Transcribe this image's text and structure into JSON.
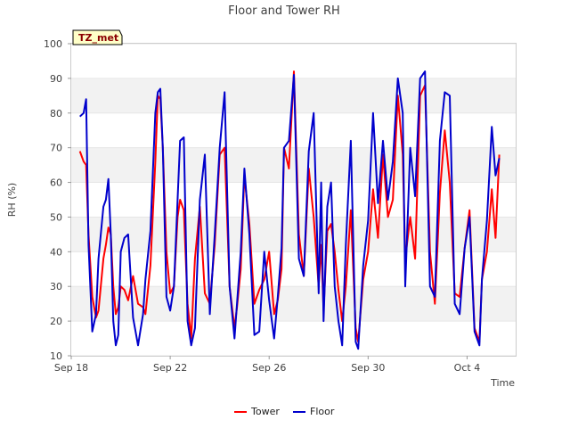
{
  "chart_data": {
    "type": "line",
    "title": "Floor and Tower RH",
    "xlabel": "Time",
    "ylabel": "RH (%)",
    "ylim": [
      10,
      100
    ],
    "yticks": [
      10,
      20,
      30,
      40,
      50,
      60,
      70,
      80,
      90,
      100
    ],
    "xlim_days": [
      0,
      18
    ],
    "xticks": [
      {
        "day": 0,
        "label": "Sep 18"
      },
      {
        "day": 4,
        "label": "Sep 22"
      },
      {
        "day": 8,
        "label": "Sep 26"
      },
      {
        "day": 12,
        "label": "Sep 30"
      },
      {
        "day": 16,
        "label": "Oct 4"
      }
    ],
    "grid": true,
    "station_label": "TZ_met",
    "legend": {
      "position": "bottom-center"
    },
    "series": [
      {
        "name": "Tower",
        "color": "#ff0000",
        "x": [
          0.35,
          0.5,
          0.6,
          0.7,
          0.85,
          1.0,
          1.1,
          1.3,
          1.4,
          1.5,
          1.6,
          1.7,
          1.8,
          1.9,
          2.0,
          2.15,
          2.3,
          2.5,
          2.7,
          2.9,
          3.0,
          3.2,
          3.4,
          3.5,
          3.6,
          3.7,
          3.85,
          4.0,
          4.15,
          4.3,
          4.4,
          4.55,
          4.7,
          4.85,
          5.0,
          5.2,
          5.4,
          5.6,
          5.8,
          6.0,
          6.2,
          6.4,
          6.6,
          6.7,
          6.85,
          7.0,
          7.2,
          7.4,
          7.6,
          7.8,
          8.0,
          8.2,
          8.35,
          8.5,
          8.6,
          8.8,
          9.0,
          9.2,
          9.4,
          9.6,
          9.8,
          10.0,
          10.1,
          10.2,
          10.35,
          10.5,
          10.65,
          10.8,
          10.95,
          11.1,
          11.3,
          11.5,
          11.6,
          11.8,
          12.0,
          12.2,
          12.4,
          12.6,
          12.8,
          13.0,
          13.2,
          13.4,
          13.5,
          13.7,
          13.9,
          14.1,
          14.3,
          14.5,
          14.7,
          14.9,
          15.1,
          15.3,
          15.5,
          15.7,
          15.9,
          16.1,
          16.3,
          16.5,
          16.6,
          16.8,
          17.0,
          17.15,
          17.3
        ],
        "y": [
          69,
          66,
          65,
          45,
          27,
          21,
          23,
          38,
          42,
          47,
          45,
          30,
          22,
          24,
          30,
          29,
          26,
          33,
          25,
          24,
          22,
          36,
          66,
          85,
          84,
          70,
          40,
          28,
          30,
          50,
          55,
          52,
          25,
          15,
          38,
          53,
          28,
          25,
          42,
          68,
          70,
          30,
          18,
          24,
          35,
          62,
          48,
          25,
          29,
          32,
          40,
          22,
          26,
          35,
          70,
          64,
          92,
          45,
          33,
          64,
          50,
          30,
          42,
          23,
          46,
          48,
          40,
          29,
          20,
          30,
          52,
          18,
          14,
          32,
          40,
          58,
          44,
          68,
          50,
          55,
          85,
          68,
          38,
          50,
          38,
          85,
          88,
          40,
          25,
          57,
          75,
          60,
          28,
          27,
          41,
          52,
          18,
          14,
          32,
          40,
          58,
          44,
          68
        ],
        "values_note": "approximate readings"
      },
      {
        "name": "Floor",
        "color": "#0000cc",
        "x": [
          0.35,
          0.5,
          0.6,
          0.7,
          0.85,
          1.0,
          1.1,
          1.3,
          1.4,
          1.5,
          1.6,
          1.7,
          1.8,
          1.9,
          2.0,
          2.15,
          2.3,
          2.5,
          2.7,
          2.9,
          3.0,
          3.2,
          3.4,
          3.5,
          3.6,
          3.7,
          3.85,
          4.0,
          4.15,
          4.3,
          4.4,
          4.55,
          4.7,
          4.85,
          5.0,
          5.2,
          5.4,
          5.6,
          5.8,
          6.0,
          6.2,
          6.4,
          6.6,
          6.7,
          6.85,
          7.0,
          7.2,
          7.4,
          7.6,
          7.8,
          8.0,
          8.2,
          8.35,
          8.5,
          8.6,
          8.8,
          9.0,
          9.2,
          9.4,
          9.6,
          9.8,
          10.0,
          10.1,
          10.2,
          10.35,
          10.5,
          10.65,
          10.8,
          10.95,
          11.1,
          11.3,
          11.5,
          11.6,
          11.8,
          12.0,
          12.2,
          12.4,
          12.6,
          12.8,
          13.0,
          13.2,
          13.4,
          13.5,
          13.7,
          13.9,
          14.1,
          14.3,
          14.5,
          14.7,
          14.9,
          15.1,
          15.3,
          15.5,
          15.7,
          15.9,
          16.1,
          16.3,
          16.5,
          16.6,
          16.8,
          17.0,
          17.15,
          17.3
        ],
        "y": [
          79,
          80,
          84,
          42,
          17,
          22,
          38,
          53,
          55,
          61,
          45,
          20,
          13,
          16,
          40,
          44,
          45,
          21,
          13,
          22,
          32,
          46,
          80,
          86,
          87,
          70,
          27,
          23,
          30,
          55,
          72,
          73,
          20,
          13,
          18,
          55,
          68,
          22,
          45,
          70,
          86,
          30,
          15,
          25,
          40,
          64,
          45,
          16,
          17,
          40,
          26,
          15,
          27,
          41,
          70,
          72,
          91,
          38,
          33,
          69,
          80,
          28,
          60,
          20,
          53,
          60,
          30,
          20,
          13,
          42,
          72,
          14,
          12,
          36,
          49,
          80,
          54,
          72,
          55,
          66,
          90,
          80,
          30,
          70,
          56,
          90,
          92,
          30,
          27,
          72,
          86,
          85,
          25,
          22,
          41,
          50,
          17,
          13,
          32,
          49,
          76,
          62,
          67
        ],
        "values_note": "approximate readings"
      }
    ]
  }
}
